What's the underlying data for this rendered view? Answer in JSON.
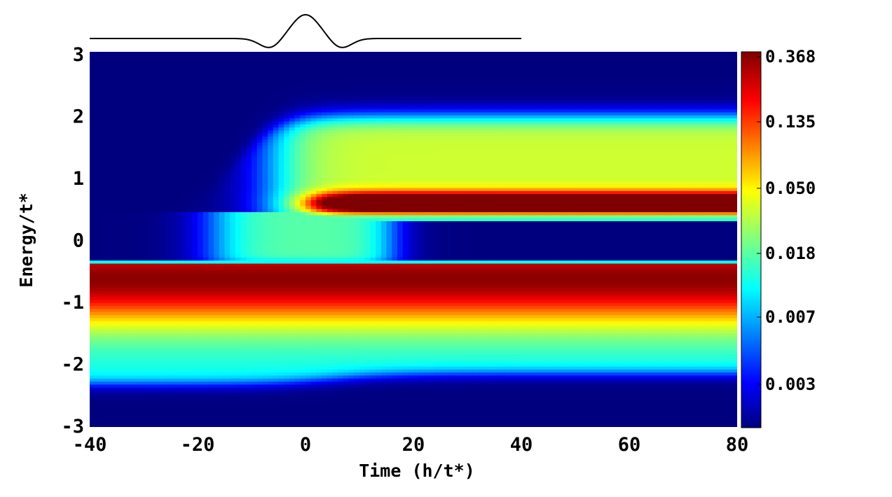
{
  "chart_data": {
    "type": "heatmap",
    "title": "",
    "xlabel": "Time (h/t*)",
    "ylabel": "Energy/t*",
    "xlim": [
      -40,
      80
    ],
    "ylim": [
      -3.2,
      3
    ],
    "x_ticks": [
      "-40",
      "-20",
      "0",
      "20",
      "40",
      "60",
      "80"
    ],
    "x_tick_values": [
      -40,
      -20,
      0,
      20,
      40,
      60,
      80
    ],
    "y_ticks": [
      "3",
      "2",
      "1",
      "0",
      "-1",
      "-2",
      "-3"
    ],
    "y_tick_values": [
      3,
      2,
      1,
      0,
      -1,
      -2,
      -3
    ],
    "colorbar": {
      "scale": "log",
      "tick_labels": [
        "0.368",
        "0.135",
        "0.050",
        "0.018",
        "0.007",
        "0.003"
      ],
      "colormap": [
        "#00007f",
        "#0000ff",
        "#00ffff",
        "#ffff00",
        "#ff0000",
        "#7f0000"
      ]
    },
    "pulse_inset": {
      "description_series": "field pulse",
      "x_range": [
        -40,
        40
      ],
      "center": 0,
      "color": "#000000"
    },
    "bands": [
      {
        "time_range": [
          -40,
          80
        ],
        "energy_range": [
          -2.3,
          -0.35
        ],
        "peak_energy": -0.6,
        "peak_value": 0.368
      },
      {
        "time_range": [
          -10,
          80
        ],
        "energy_range": [
          0.35,
          2.0
        ],
        "peak_energy": 0.6,
        "peak_value": 0.135
      },
      {
        "time_range": [
          -15,
          20
        ],
        "energy_range": [
          -0.35,
          0.35
        ],
        "peak_energy": 0.0,
        "peak_value": 0.018
      }
    ],
    "grid": false,
    "legend": "colorbar-right"
  }
}
